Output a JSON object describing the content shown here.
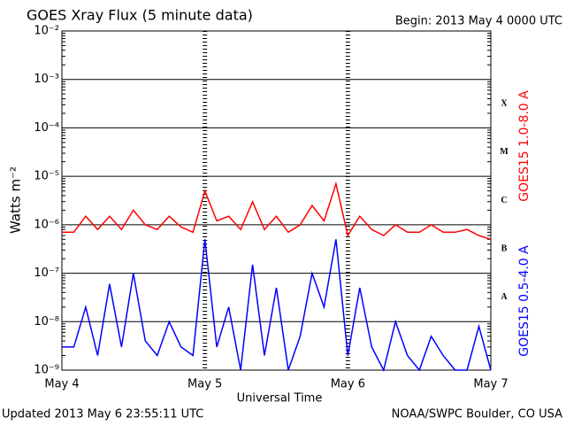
{
  "chart_data": {
    "type": "line",
    "title": "GOES Xray Flux (5 minute data)",
    "subtitle": "Begin:  2013 May 4 0000 UTC",
    "ylabel": "Watts m⁻²",
    "xlabel": "Universal Time",
    "footer_left": "Updated 2013 May  6 23:55:11 UTC",
    "footer_right": "NOAA/SWPC Boulder, CO USA",
    "log_scale": true,
    "grid": true,
    "categories": [
      "May 4",
      null,
      null,
      null,
      null,
      null,
      null,
      null,
      null,
      null,
      null,
      null,
      "May 5",
      null,
      null,
      null,
      null,
      null,
      null,
      null,
      null,
      null,
      null,
      null,
      "May 6",
      null,
      null,
      null,
      null,
      null,
      null,
      null,
      null,
      null,
      null,
      null,
      "May 7"
    ],
    "ylim": [
      1e-09,
      0.01
    ],
    "yticks": [
      {
        "value": 1e-09,
        "label": "10⁻⁹"
      },
      {
        "value": 1e-08,
        "label": "10⁻⁸"
      },
      {
        "value": 1e-07,
        "label": "10⁻⁷"
      },
      {
        "value": 1e-06,
        "label": "10⁻⁶"
      },
      {
        "value": 1e-05,
        "label": "10⁻⁵"
      },
      {
        "value": 0.0001,
        "label": "10⁻⁴"
      },
      {
        "value": 0.001,
        "label": "10⁻³"
      },
      {
        "value": 0.01,
        "label": "10⁻²"
      }
    ],
    "flare_classes": [
      "A",
      "B",
      "C",
      "M",
      "X"
    ],
    "series": [
      {
        "name": "GOES15 1.0-8.0 A",
        "color": "#ff0000",
        "values": [
          7e-07,
          7e-07,
          1.5e-06,
          8e-07,
          1.5e-06,
          8e-07,
          2e-06,
          1e-06,
          8e-07,
          1.5e-06,
          9e-07,
          7e-07,
          5e-06,
          1.2e-06,
          1.5e-06,
          8e-07,
          3e-06,
          8e-07,
          1.5e-06,
          7e-07,
          1e-06,
          2.5e-06,
          1.2e-06,
          7e-06,
          6e-07,
          1.5e-06,
          8e-07,
          6e-07,
          1e-06,
          7e-07,
          7e-07,
          1e-06,
          7e-07,
          7e-07,
          8e-07,
          6e-07,
          5e-07
        ]
      },
      {
        "name": "GOES15 0.5-4.0 A",
        "color": "#0000ff",
        "values": [
          3e-09,
          3e-09,
          2e-08,
          2e-09,
          6e-08,
          3e-09,
          1e-07,
          4e-09,
          2e-09,
          1e-08,
          3e-09,
          2e-09,
          5e-07,
          3e-09,
          2e-08,
          1e-09,
          1.5e-07,
          2e-09,
          5e-08,
          1e-09,
          5e-09,
          1e-07,
          2e-08,
          5e-07,
          2e-09,
          5e-08,
          3e-09,
          1e-09,
          1e-08,
          2e-09,
          1e-09,
          5e-09,
          2e-09,
          1e-09,
          1e-09,
          8e-09,
          1e-09
        ]
      }
    ]
  }
}
